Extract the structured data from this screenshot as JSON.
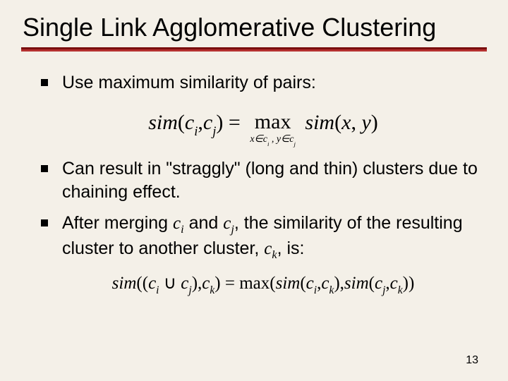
{
  "title": "Single Link Agglomerative Clustering",
  "bullets": {
    "b1": "Use maximum similarity of pairs:",
    "b2": "Can result in \"straggly\" (long and thin) clusters due to chaining effect.",
    "b3_prefix": "After merging ",
    "b3_ci": "c",
    "b3_ci_sub": "i",
    "b3_mid1": " and ",
    "b3_cj": "c",
    "b3_cj_sub": "j",
    "b3_mid2": ", the similarity of the resulting cluster to another cluster, ",
    "b3_ck": "c",
    "b3_ck_sub": "k",
    "b3_suffix": ", is:"
  },
  "formula1": {
    "sim": "sim",
    "lp": "(",
    "c": "c",
    "i": "i",
    "comma": ",",
    "j": "j",
    "rp": ")",
    "sp": " ",
    "eq": " = ",
    "max": "max",
    "under_left": "x∈c",
    "under_mid": " , y∈c",
    "simxy_pre": "  sim",
    "x": "x",
    "y": "y"
  },
  "formula2": {
    "sim": "sim",
    "dlp": "((",
    "c": "c",
    "i": "i",
    "cup": " ∪ ",
    "j": "j",
    "rp": ")",
    "comma": ",",
    "k": "k",
    "eq": " = ",
    "max": "max",
    "lp": "(",
    "drp": "))"
  },
  "page": "13",
  "colors": {
    "background": "#f4f0e8",
    "rule_dark": "#7a0e0e",
    "rule_light": "#b53030",
    "text": "#000000"
  },
  "fonts": {
    "body": "Arial",
    "math": "Times New Roman",
    "title_size_pt": 36,
    "bullet_size_pt": 25,
    "formula1_size_pt": 30,
    "formula2_size_pt": 25
  }
}
